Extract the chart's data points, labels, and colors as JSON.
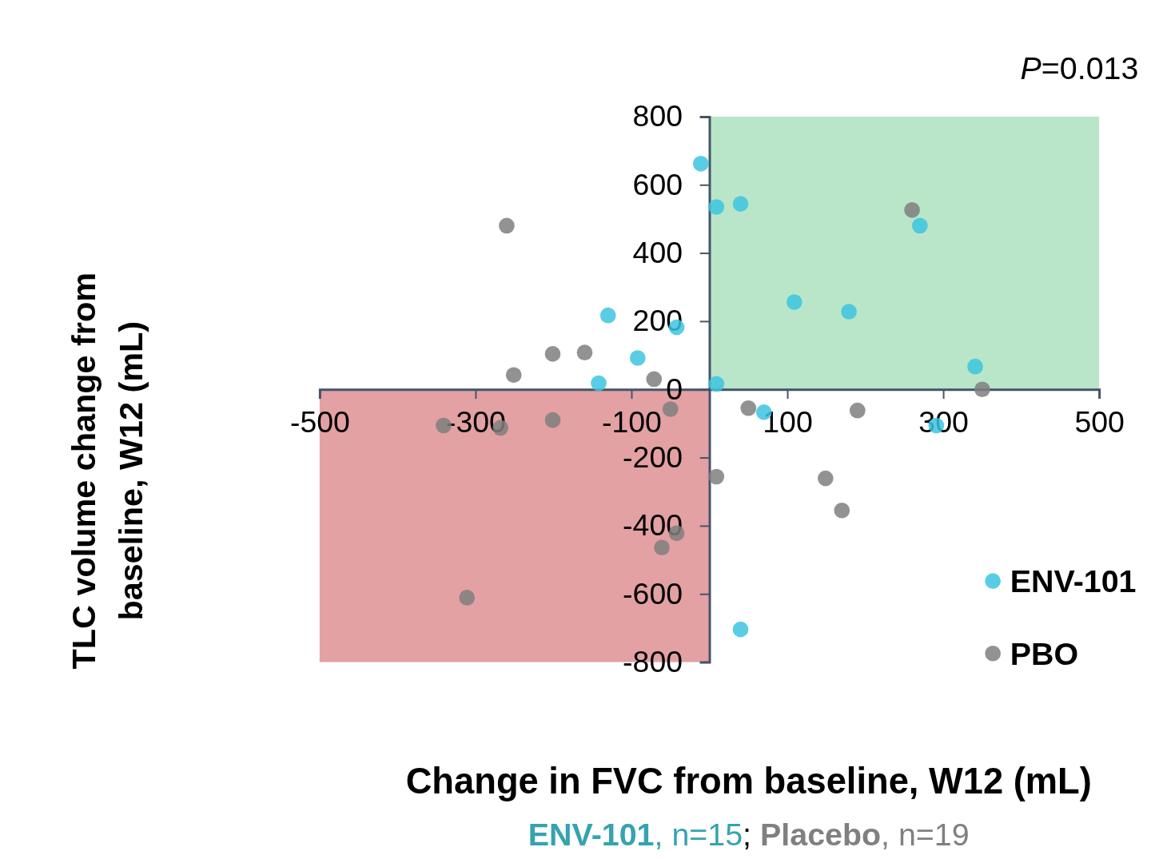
{
  "chart_data": {
    "type": "scatter",
    "xlabel": "Change in FVC from baseline, W12 (mL)",
    "ylabel": "TLC volume change from baseline, W12 (mL)",
    "subtitle": "ENV-101, n=15; Placebo, n=19",
    "annotations": [
      "P=0.013"
    ],
    "xlim": [
      -500,
      500
    ],
    "xticks": [
      -500,
      -300,
      -100,
      100,
      300,
      500
    ],
    "ylim": [
      -800,
      800
    ],
    "yticks": [
      -800,
      -600,
      -400,
      -200,
      0,
      200,
      400,
      600,
      800
    ],
    "bands": [
      {
        "axis": "x",
        "from": 0,
        "to": 500,
        "color": "#b9e6c9"
      },
      {
        "axis": "x",
        "from": -500,
        "to": 0,
        "color": "#e3a1a3"
      }
    ],
    "marker": "circle",
    "legend": "bottom right",
    "series": [
      {
        "name": "ENV-101",
        "color": "#3cc4e0",
        "x": [
          -11,
          9,
          40,
          -130,
          -42,
          -92,
          -142,
          9,
          109,
          179,
          270,
          341,
          70,
          291,
          40
        ],
        "values": [
          662,
          535,
          544,
          217,
          182,
          92,
          18,
          16,
          256,
          228,
          480,
          67,
          -67,
          -106,
          -704
        ]
      },
      {
        "name": "PBO",
        "color": "#7f7f7f",
        "x": [
          -260,
          -251,
          -201,
          -160,
          -71,
          -341,
          -268,
          -201,
          -50,
          50,
          190,
          260,
          350,
          9,
          149,
          170,
          -61,
          -42,
          -311
        ],
        "values": [
          480,
          42,
          104,
          108,
          30,
          -106,
          -113,
          -90,
          -58,
          -55,
          -62,
          526,
          0,
          -256,
          -261,
          -355,
          -464,
          -422,
          -611
        ]
      }
    ]
  }
}
